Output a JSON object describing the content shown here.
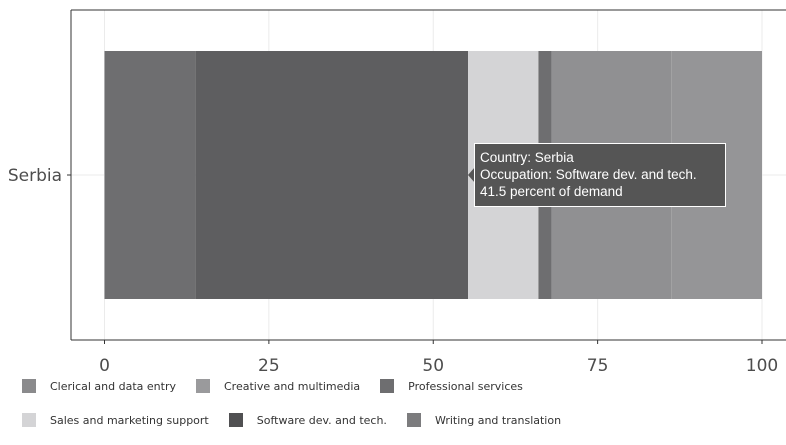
{
  "chart_data": {
    "type": "bar",
    "orientation": "horizontal",
    "stacked": true,
    "categories": [
      "Serbia"
    ],
    "xlim": [
      0,
      100
    ],
    "xticks": [
      "0",
      "25",
      "50",
      "75",
      "100"
    ],
    "grid": true,
    "legend_position": "bottom",
    "segments": [
      {
        "name": "Clerical and data entry",
        "value": 13.8,
        "color": "#6e6e70"
      },
      {
        "name": "Software dev. and tech.",
        "value": 41.5,
        "color": "#5e5e60"
      },
      {
        "name": "Sales and marketing support",
        "value": 10.7,
        "color": "#d4d4d6"
      },
      {
        "name": "Professional services",
        "value": 2.0,
        "color": "#6e6e70"
      },
      {
        "name": "Creative and multimedia",
        "value": 18.2,
        "color": "#909092"
      },
      {
        "name": "Writing and translation",
        "value": 13.8,
        "color": "#959597"
      }
    ]
  },
  "legend": {
    "rows": [
      [
        {
          "label": "Clerical and data entry",
          "color": "#8a8a8c"
        },
        {
          "label": "Creative and multimedia",
          "color": "#9a9a9c"
        },
        {
          "label": "Professional services",
          "color": "#6e6e70"
        }
      ],
      [
        {
          "label": "Sales and marketing support",
          "color": "#d4d4d6"
        },
        {
          "label": "Software dev. and tech.",
          "color": "#505052"
        },
        {
          "label": "Writing and translation",
          "color": "#7c7c7e"
        }
      ]
    ]
  },
  "tooltip": {
    "line1": "Country: Serbia",
    "line2": "Occupation: Software dev. and tech.",
    "line3": "41.5 percent of demand"
  }
}
